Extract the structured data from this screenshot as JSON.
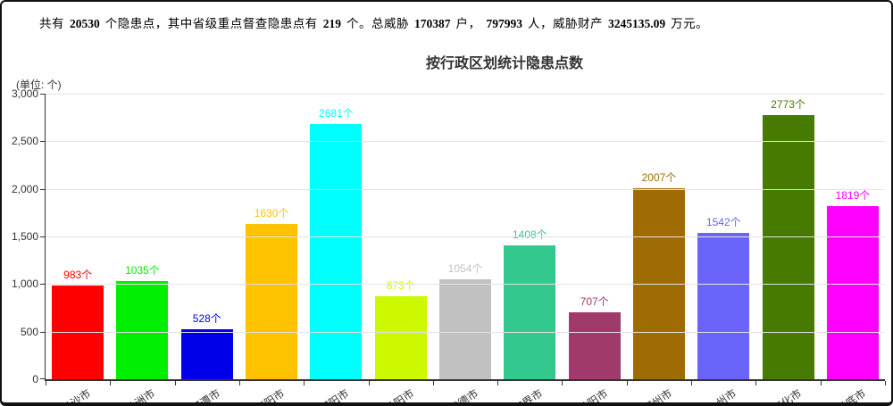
{
  "summary": {
    "segments": [
      {
        "text": "共有",
        "bold": false
      },
      {
        "text": "20530",
        "bold": true
      },
      {
        "text": "个隐患点，其中省级重点督查隐患点有",
        "bold": false
      },
      {
        "text": "219",
        "bold": true
      },
      {
        "text": "个。总威胁",
        "bold": false
      },
      {
        "text": "170387",
        "bold": true
      },
      {
        "text": "户，",
        "bold": false
      },
      {
        "text": "797993",
        "bold": true
      },
      {
        "text": "人，威胁财产",
        "bold": false
      },
      {
        "text": "3245135.09",
        "bold": true
      },
      {
        "text": "万元。",
        "bold": false
      }
    ]
  },
  "chart": {
    "title": "按行政区划统计隐患点数",
    "unit_label": "(单位: 个)"
  },
  "chart_data": {
    "type": "bar",
    "title": "按行政区划统计隐患点数",
    "unit": "个",
    "categories": [
      "长沙市",
      "株洲市",
      "湘潭市",
      "衡阳市",
      "邵阳市",
      "岳阳市",
      "常德市",
      "张家界市",
      "益阳市",
      "郴州市",
      "永州市",
      "怀化市",
      "娄底市"
    ],
    "values": [
      983,
      1035,
      528,
      1630,
      2681,
      873,
      1054,
      1408,
      707,
      2007,
      1542,
      2773,
      1819
    ],
    "value_label_suffix": "个",
    "bar_colors": [
      "#ff0000",
      "#00ee00",
      "#0000e8",
      "#ffc200",
      "#00ffff",
      "#ccf900",
      "#c1c1c1",
      "#33c98e",
      "#a03a6b",
      "#9e6c02",
      "#6a64fa",
      "#467a01",
      "#ff00ff"
    ],
    "xlabel": "",
    "ylabel": "",
    "ylim": [
      0,
      3000
    ],
    "ytick_interval": 500,
    "ytick_labels": [
      "0",
      "500",
      "1,000",
      "1,500",
      "2,000",
      "2,500",
      "3,000"
    ],
    "grid": true,
    "legend": "none",
    "axis_color": "#333333",
    "grid_color": "#e2e2e2"
  }
}
